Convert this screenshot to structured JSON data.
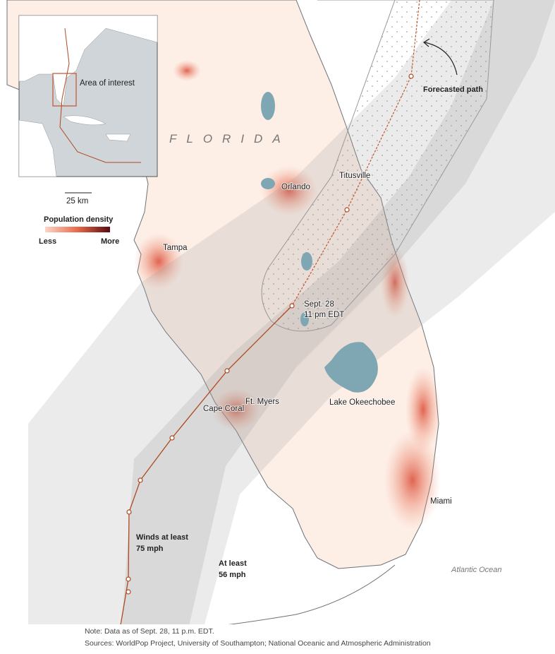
{
  "map": {
    "region_label": "FLORIDA",
    "cities": [
      "Titusville",
      "Orlando",
      "Tampa",
      "Ft. Myers",
      "Cape Coral",
      "Miami"
    ],
    "lake": "Lake Okeechobee",
    "ocean": "Atlantic Ocean",
    "forecast_point": [
      "Sept. 28",
      "11 pm EDT"
    ],
    "forecast_label": "Forecasted path",
    "wind_zones": [
      [
        "Winds at least",
        "75 mph"
      ],
      [
        "At least",
        "56 mph"
      ]
    ]
  },
  "inset": {
    "label": "Area of interest"
  },
  "scale": {
    "label": "25 km"
  },
  "legend": {
    "title": "Population density",
    "low": "Less",
    "high": "More"
  },
  "footer": {
    "note": "Note: Data as of Sept. 28, 11 p.m. EDT.",
    "sources": "Sources: WorldPop Project, University of Southampton; National Oceanic and Atmospheric Administration"
  }
}
